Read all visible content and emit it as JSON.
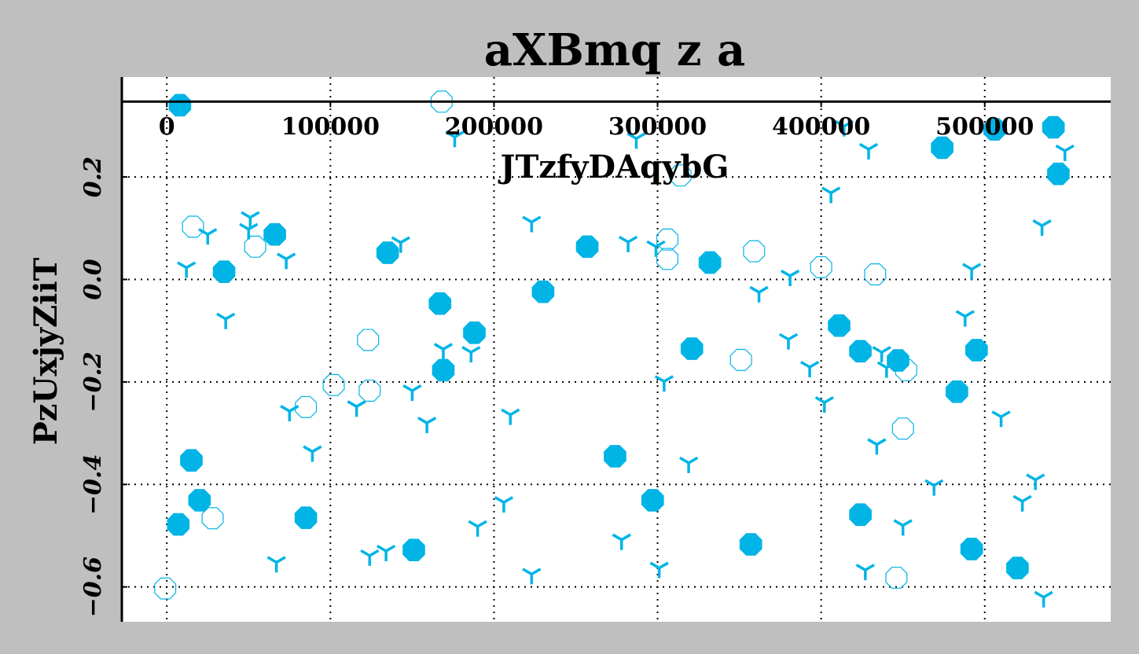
{
  "chart_data": {
    "type": "scatter",
    "title": "aXBmq z a",
    "xlabel": "JTzfyDAqybG",
    "ylabel": "PzUxjyZiiT",
    "xlim": [
      -27500,
      577000
    ],
    "ylim": [
      -0.668,
      0.395
    ],
    "x_ticks": [
      0,
      100000,
      200000,
      300000,
      400000,
      500000
    ],
    "x_tick_labels": [
      "0",
      "100000",
      "200000",
      "300000",
      "400000",
      "500000"
    ],
    "y_ticks": [
      -0.6,
      -0.4,
      -0.2,
      0.0,
      0.2
    ],
    "y_tick_labels": [
      "−0.6",
      "−0.4",
      "−0.2",
      "0.0",
      "0.2"
    ],
    "x_axis_position": "top, drawn at y = 0.347",
    "grid": true,
    "legend": "none",
    "colors": {
      "series": "#00b4e6",
      "background": "#bfbfbf",
      "plot_background": "#ffffff"
    },
    "series": [
      {
        "marker": "filled octagon",
        "points": [
          [
            8000,
            0.34
          ],
          [
            7000,
            -0.478
          ],
          [
            15000,
            -0.353
          ],
          [
            20000,
            -0.431
          ],
          [
            35000,
            0.015
          ],
          [
            66000,
            0.088
          ],
          [
            85000,
            -0.465
          ],
          [
            135000,
            0.052
          ],
          [
            151000,
            -0.528
          ],
          [
            167000,
            -0.047
          ],
          [
            169000,
            -0.177
          ],
          [
            188000,
            -0.104
          ],
          [
            230000,
            -0.024
          ],
          [
            257000,
            0.064
          ],
          [
            274000,
            -0.345
          ],
          [
            297000,
            -0.431
          ],
          [
            332000,
            0.033
          ],
          [
            321000,
            -0.135
          ],
          [
            357000,
            -0.517
          ],
          [
            411000,
            -0.09
          ],
          [
            424000,
            -0.14
          ],
          [
            424000,
            -0.459
          ],
          [
            447000,
            -0.158
          ],
          [
            474000,
            0.257
          ],
          [
            483000,
            -0.219
          ],
          [
            492000,
            -0.526
          ],
          [
            495000,
            -0.138
          ],
          [
            506000,
            0.293
          ],
          [
            520000,
            -0.563
          ],
          [
            542000,
            0.297
          ],
          [
            545000,
            0.206
          ]
        ]
      },
      {
        "marker": "hollow octagon",
        "points": [
          [
            -1000,
            -0.603
          ],
          [
            16000,
            0.103
          ],
          [
            28000,
            -0.466
          ],
          [
            54000,
            0.064
          ],
          [
            85000,
            -0.249
          ],
          [
            102000,
            -0.206
          ],
          [
            123000,
            -0.118
          ],
          [
            124000,
            -0.217
          ],
          [
            168000,
            0.347
          ],
          [
            306000,
            0.078
          ],
          [
            306000,
            0.04
          ],
          [
            314000,
            0.203
          ],
          [
            351000,
            -0.157
          ],
          [
            359000,
            0.055
          ],
          [
            400000,
            0.024
          ],
          [
            433000,
            0.01
          ],
          [
            446000,
            -0.582
          ],
          [
            450000,
            -0.291
          ],
          [
            452000,
            -0.177
          ]
        ]
      },
      {
        "marker": "tri_down",
        "points": [
          [
            12000,
            0.023
          ],
          [
            25000,
            0.088
          ],
          [
            36000,
            -0.077
          ],
          [
            50000,
            0.098
          ],
          [
            51000,
            0.121
          ],
          [
            73000,
            0.04
          ],
          [
            67000,
            -0.552
          ],
          [
            75000,
            -0.257
          ],
          [
            89000,
            -0.336
          ],
          [
            116000,
            -0.248
          ],
          [
            124000,
            -0.539
          ],
          [
            134000,
            -0.53
          ],
          [
            143000,
            0.072
          ],
          [
            150000,
            -0.217
          ],
          [
            159000,
            -0.28
          ],
          [
            169000,
            -0.136
          ],
          [
            176000,
            0.278
          ],
          [
            186000,
            -0.142
          ],
          [
            190000,
            -0.482
          ],
          [
            206000,
            -0.435
          ],
          [
            210000,
            -0.264
          ],
          [
            223000,
            0.112
          ],
          [
            223000,
            -0.575
          ],
          [
            278000,
            -0.508
          ],
          [
            282000,
            0.073
          ],
          [
            287000,
            0.275
          ],
          [
            299000,
            0.064
          ],
          [
            301000,
            -0.563
          ],
          [
            304000,
            -0.199
          ],
          [
            319000,
            -0.358
          ],
          [
            362000,
            -0.025
          ],
          [
            380000,
            -0.117
          ],
          [
            381000,
            0.007
          ],
          [
            393000,
            -0.171
          ],
          [
            402000,
            -0.24
          ],
          [
            406000,
            0.169
          ],
          [
            414000,
            0.299
          ],
          [
            427000,
            -0.567
          ],
          [
            429000,
            0.254
          ],
          [
            437000,
            -0.142
          ],
          [
            440000,
            -0.172
          ],
          [
            434000,
            -0.322
          ],
          [
            450000,
            -0.48
          ],
          [
            469000,
            -0.402
          ],
          [
            488000,
            -0.072
          ],
          [
            492000,
            0.02
          ],
          [
            510000,
            -0.268
          ],
          [
            523000,
            -0.433
          ],
          [
            531000,
            -0.391
          ],
          [
            535000,
            0.105
          ],
          [
            536000,
            -0.62
          ],
          [
            549000,
            0.251
          ]
        ]
      }
    ]
  }
}
